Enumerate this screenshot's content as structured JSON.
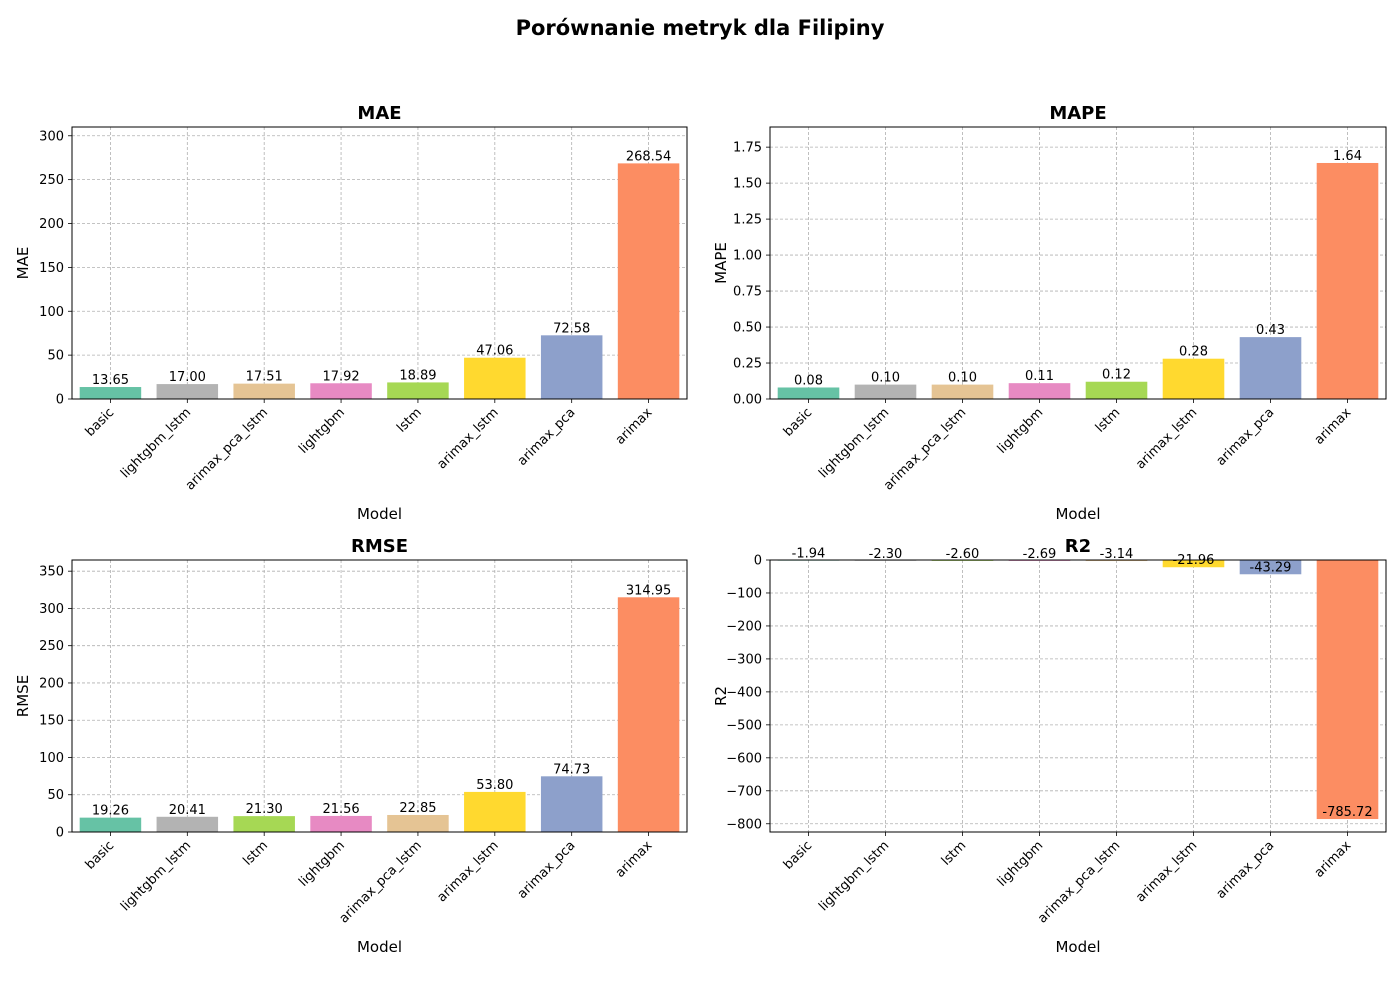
{
  "figure": {
    "title": "Porównanie metryk dla Filipiny"
  },
  "colors": {
    "basic": "#66c2a5",
    "lightgbm_lstm": "#b3b3b3",
    "arimax_pca_lstm": "#e5c494",
    "lightgbm": "#e78ac3",
    "lstm": "#a6d854",
    "arimax_lstm": "#ffd92f",
    "arimax_pca": "#8da0cb",
    "arimax": "#fc8d62"
  },
  "chart_data": [
    {
      "type": "bar",
      "title": "MAE",
      "xlabel": "Model",
      "ylabel": "MAE",
      "categories": [
        "basic",
        "lightgbm_lstm",
        "arimax_pca_lstm",
        "lightgbm",
        "lstm",
        "arimax_lstm",
        "arimax_pca",
        "arimax"
      ],
      "values": [
        13.65,
        17.0,
        17.51,
        17.92,
        18.89,
        47.06,
        72.58,
        268.54
      ],
      "labels": [
        "13.65",
        "17.00",
        "17.51",
        "17.92",
        "18.89",
        "47.06",
        "72.58",
        "268.54"
      ],
      "ylim": [
        0,
        310
      ],
      "yticks": [
        0,
        50,
        100,
        150,
        200,
        250,
        300
      ],
      "ytick_labels": [
        "0",
        "50",
        "100",
        "150",
        "200",
        "250",
        "300"
      ],
      "grid": true
    },
    {
      "type": "bar",
      "title": "MAPE",
      "xlabel": "Model",
      "ylabel": "MAPE",
      "categories": [
        "basic",
        "lightgbm_lstm",
        "arimax_pca_lstm",
        "lightgbm",
        "lstm",
        "arimax_lstm",
        "arimax_pca",
        "arimax"
      ],
      "values": [
        0.08,
        0.1,
        0.1,
        0.11,
        0.12,
        0.28,
        0.43,
        1.64
      ],
      "labels": [
        "0.08",
        "0.10",
        "0.10",
        "0.11",
        "0.12",
        "0.28",
        "0.43",
        "1.64"
      ],
      "ylim": [
        0,
        1.89
      ],
      "yticks": [
        0,
        0.25,
        0.5,
        0.75,
        1.0,
        1.25,
        1.5,
        1.75
      ],
      "ytick_labels": [
        "0.00",
        "0.25",
        "0.50",
        "0.75",
        "1.00",
        "1.25",
        "1.50",
        "1.75"
      ],
      "grid": true
    },
    {
      "type": "bar",
      "title": "RMSE",
      "xlabel": "Model",
      "ylabel": "RMSE",
      "categories": [
        "basic",
        "lightgbm_lstm",
        "lstm",
        "lightgbm",
        "arimax_pca_lstm",
        "arimax_lstm",
        "arimax_pca",
        "arimax"
      ],
      "values": [
        19.26,
        20.41,
        21.3,
        21.56,
        22.85,
        53.8,
        74.73,
        314.95
      ],
      "labels": [
        "19.26",
        "20.41",
        "21.30",
        "21.56",
        "22.85",
        "53.80",
        "74.73",
        "314.95"
      ],
      "ylim": [
        0,
        365
      ],
      "yticks": [
        0,
        50,
        100,
        150,
        200,
        250,
        300,
        350
      ],
      "ytick_labels": [
        "0",
        "50",
        "100",
        "150",
        "200",
        "250",
        "300",
        "350"
      ],
      "grid": true
    },
    {
      "type": "bar",
      "title": "R2",
      "xlabel": "Model",
      "ylabel": "R2",
      "categories": [
        "basic",
        "lightgbm_lstm",
        "lstm",
        "lightgbm",
        "arimax_pca_lstm",
        "arimax_lstm",
        "arimax_pca",
        "arimax"
      ],
      "values": [
        -1.94,
        -2.3,
        -2.6,
        -2.69,
        -3.14,
        -21.96,
        -43.29,
        -785.72
      ],
      "labels": [
        "-1.94",
        "-2.30",
        "-2.60",
        "-2.69",
        "-3.14",
        "-21.96",
        "-43.29",
        "-785.72"
      ],
      "ylim": [
        -825,
        0
      ],
      "yticks": [
        0,
        -100,
        -200,
        -300,
        -400,
        -500,
        -600,
        -700,
        -800
      ],
      "ytick_labels": [
        "0",
        "−100",
        "−200",
        "−300",
        "−400",
        "−500",
        "−600",
        "−700",
        "−800"
      ],
      "grid": true
    }
  ]
}
